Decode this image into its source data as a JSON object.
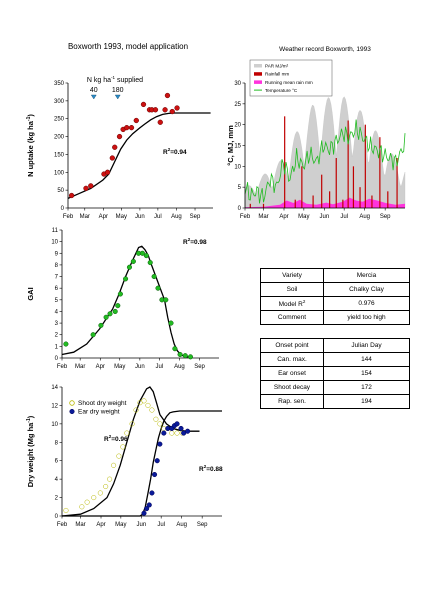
{
  "figure": {
    "title": "Boxworth 1993, model application",
    "months": [
      "Feb",
      "Mar",
      "Apr",
      "May",
      "Jun",
      "Jul",
      "Aug",
      "Sep"
    ]
  },
  "chart_data": [
    {
      "id": "n_uptake",
      "type": "scatter",
      "ylabel_main": "N uptake (kg ha",
      "ylabel_sup": "-1",
      "ylabel_end": ")",
      "ylim": [
        0,
        350
      ],
      "yticks": [
        0,
        50,
        100,
        150,
        200,
        250,
        300,
        350
      ],
      "xlim": [
        32,
        274
      ],
      "r2": "0.94",
      "supply_label_main": "N kg ha",
      "supply_label_sup": "-1",
      "supply_label_end": " supplied",
      "supply_events": [
        {
          "x": 75,
          "amount": "40"
        },
        {
          "x": 115,
          "amount": "180"
        }
      ],
      "observed": {
        "color": "#cc1111",
        "x": [
          38,
          62,
          70,
          92,
          98,
          106,
          110,
          118,
          124,
          130,
          138,
          146,
          158,
          168,
          172,
          178,
          186,
          194,
          198,
          206,
          214
        ],
        "y": [
          35,
          55,
          62,
          95,
          100,
          140,
          170,
          200,
          220,
          225,
          225,
          245,
          290,
          275,
          275,
          275,
          240,
          275,
          315,
          270,
          280
        ]
      },
      "model": {
        "x": [
          32,
          50,
          70,
          90,
          100,
          110,
          120,
          130,
          140,
          150,
          160,
          170,
          180,
          190,
          200,
          210,
          220,
          230,
          240,
          250,
          260,
          270
        ],
        "y": [
          27,
          40,
          55,
          78,
          95,
          130,
          165,
          190,
          208,
          222,
          235,
          247,
          256,
          262,
          265,
          266,
          266,
          266,
          266,
          266,
          266,
          266
        ]
      }
    },
    {
      "id": "weather",
      "type": "area",
      "title": "Weather record Boxworth, 1993",
      "ylabel": "°C, MJ, mm",
      "ylim": [
        0,
        30
      ],
      "yticks": [
        0,
        5,
        10,
        15,
        20,
        25,
        30
      ],
      "xlim": [
        32,
        274
      ],
      "legend": [
        {
          "label": "PAR MJ/m²",
          "color": "#cfcfcf"
        },
        {
          "label": "Rainfall mm",
          "color": "#c00000"
        },
        {
          "label": "Running mean rain mm",
          "color": "#ff33dd"
        },
        {
          "label": "Temperature °C",
          "color": "#22bb22"
        }
      ],
      "legend_position": "top-left",
      "par": {
        "x": [
          32,
          45,
          60,
          75,
          90,
          105,
          120,
          135,
          150,
          165,
          180,
          195,
          210,
          225,
          240,
          255,
          270
        ],
        "y": [
          5,
          6,
          8,
          10,
          12,
          17,
          21,
          25,
          26,
          27,
          27,
          25,
          23,
          20,
          16,
          13,
          10
        ]
      },
      "rain_events": {
        "x": [
          40,
          60,
          92,
          108,
          118,
          135,
          148,
          160,
          170,
          180,
          188,
          196,
          206,
          214,
          224,
          236,
          248,
          262
        ],
        "y": [
          1,
          1,
          22,
          2,
          10,
          3,
          8,
          4,
          12,
          2,
          21,
          10,
          5,
          20,
          3,
          17,
          4,
          12
        ]
      },
      "rain_mean": {
        "x": [
          32,
          60,
          85,
          95,
          105,
          115,
          125,
          140,
          155,
          165,
          180,
          190,
          200,
          210,
          220,
          232,
          245,
          260,
          274
        ],
        "y": [
          0.2,
          0.3,
          0.8,
          1.8,
          1.2,
          2.0,
          1.0,
          0.8,
          1.3,
          0.9,
          1.5,
          2.5,
          1.8,
          1.5,
          2.2,
          1.8,
          1.2,
          0.8,
          1.0
        ]
      },
      "temperature": {
        "x": [
          32,
          40,
          50,
          60,
          70,
          80,
          90,
          100,
          110,
          120,
          130,
          140,
          150,
          160,
          170,
          180,
          190,
          200,
          210,
          220,
          230,
          240,
          250,
          260,
          270,
          274
        ],
        "y": [
          5,
          3,
          4,
          2.5,
          7,
          5,
          11,
          7,
          12,
          10,
          13,
          11,
          15,
          14,
          16,
          18,
          17,
          19,
          17,
          15,
          14,
          13,
          12,
          11,
          14,
          16
        ]
      }
    },
    {
      "id": "gai",
      "type": "scatter",
      "ylabel": "GAI",
      "ylim": [
        0,
        11
      ],
      "yticks": [
        0,
        1,
        2,
        3,
        4,
        5,
        6,
        7,
        8,
        9,
        10,
        11
      ],
      "xlim": [
        32,
        274
      ],
      "r2": "0.98",
      "observed": {
        "color": "#22bb22",
        "x": [
          38,
          80,
          92,
          100,
          106,
          114,
          118,
          122,
          130,
          136,
          142,
          150,
          156,
          162,
          168,
          174,
          180,
          186,
          192,
          200,
          206,
          214,
          222,
          230
        ],
        "y": [
          1.2,
          2.0,
          2.8,
          3.5,
          3.8,
          4.0,
          4.5,
          5.5,
          6.8,
          7.8,
          8.3,
          9.0,
          9.0,
          8.8,
          8.2,
          7.0,
          6.0,
          5.0,
          5.0,
          3.0,
          0.8,
          0.3,
          0.2,
          0.1
        ]
      },
      "model": {
        "x": [
          32,
          50,
          70,
          90,
          110,
          120,
          130,
          140,
          150,
          155,
          160,
          165,
          170,
          180,
          190,
          195,
          200,
          205,
          210,
          215,
          220,
          230
        ],
        "y": [
          0.3,
          0.5,
          1.2,
          2.5,
          4.2,
          5.5,
          7.0,
          8.3,
          9.5,
          9.6,
          9.3,
          8.8,
          8.0,
          6.5,
          5.0,
          3.5,
          2.2,
          1.2,
          0.6,
          0.3,
          0.15,
          0.05
        ]
      }
    },
    {
      "id": "dry_weight",
      "type": "scatter",
      "ylabel": "Dry weight (Mg ha",
      "ylabel_sup": "-1",
      "ylabel_end": ")",
      "ylim": [
        0,
        14
      ],
      "yticks": [
        0,
        2,
        4,
        6,
        8,
        10,
        12,
        14
      ],
      "xlim": [
        32,
        274
      ],
      "legend": [
        {
          "label": "Shoot dry weight",
          "color": "#eeee55",
          "stroke": "#999900"
        },
        {
          "label": "Ear dry weight",
          "color": "#0a1a99",
          "stroke": "#000055"
        }
      ],
      "legend_position": "top-left",
      "r2_shoot": "0.96",
      "r2_ear": "0.88",
      "shoot_observed": {
        "x": [
          38,
          62,
          70,
          80,
          90,
          98,
          104,
          110,
          118,
          124,
          130,
          138,
          144,
          150,
          156,
          162,
          168,
          174,
          180,
          186,
          192,
          198,
          206,
          214
        ],
        "y": [
          0.6,
          1.0,
          1.5,
          2.0,
          2.5,
          3.2,
          4.0,
          5.5,
          6.5,
          7.5,
          9.0,
          10.0,
          11.5,
          12.3,
          12.5,
          12.0,
          11.5,
          10.5,
          10.0,
          9.5,
          9.5,
          9.0,
          9.0,
          9.0
        ]
      },
      "shoot_model": {
        "x": [
          32,
          60,
          80,
          100,
          110,
          120,
          130,
          140,
          150,
          160,
          165,
          170,
          175,
          180,
          190,
          200,
          210,
          220,
          230,
          240
        ],
        "y": [
          0,
          0.2,
          0.8,
          2.0,
          3.5,
          5.5,
          8.0,
          10.5,
          12.5,
          13.8,
          14.0,
          13.5,
          12.3,
          11.0,
          10.0,
          9.5,
          9.3,
          9.2,
          9.2,
          9.2
        ]
      },
      "ear_observed": {
        "x": [
          156,
          160,
          164,
          168,
          172,
          176,
          180,
          186,
          192,
          198,
          202,
          206,
          212,
          216,
          222
        ],
        "y": [
          0.3,
          0.8,
          1.2,
          2.5,
          4.5,
          6.0,
          7.8,
          9.0,
          9.5,
          9.5,
          9.8,
          10.0,
          9.5,
          9.0,
          9.2
        ]
      },
      "ear_model": {
        "x": [
          32,
          150,
          154,
          158,
          162,
          166,
          170,
          174,
          178,
          182,
          186,
          190,
          195,
          200,
          210,
          220,
          240,
          270,
          274
        ],
        "y": [
          0,
          0,
          0.2,
          1.0,
          2.5,
          4.0,
          5.8,
          7.2,
          8.5,
          9.5,
          10.3,
          10.8,
          11.2,
          11.3,
          11.4,
          11.4,
          11.4,
          11.4,
          11.4
        ]
      }
    }
  ],
  "variety_table": {
    "rows": [
      {
        "label": "Variety",
        "value": "Mercia"
      },
      {
        "label": "Soil",
        "value": "Chalky Clay"
      },
      {
        "label": "Model R",
        "value": "0.976"
      },
      {
        "label": "Comment",
        "value": "yield too high"
      }
    ],
    "r_sup": "2"
  },
  "onset_table": {
    "header": {
      "label": "Onset point",
      "value": "Julian Day"
    },
    "rows": [
      {
        "label": "Can. max.",
        "value": "144"
      },
      {
        "label": "Ear onset",
        "value": "154"
      },
      {
        "label": "Shoot decay",
        "value": "172"
      },
      {
        "label": "Rap. sen.",
        "value": "194"
      }
    ]
  }
}
